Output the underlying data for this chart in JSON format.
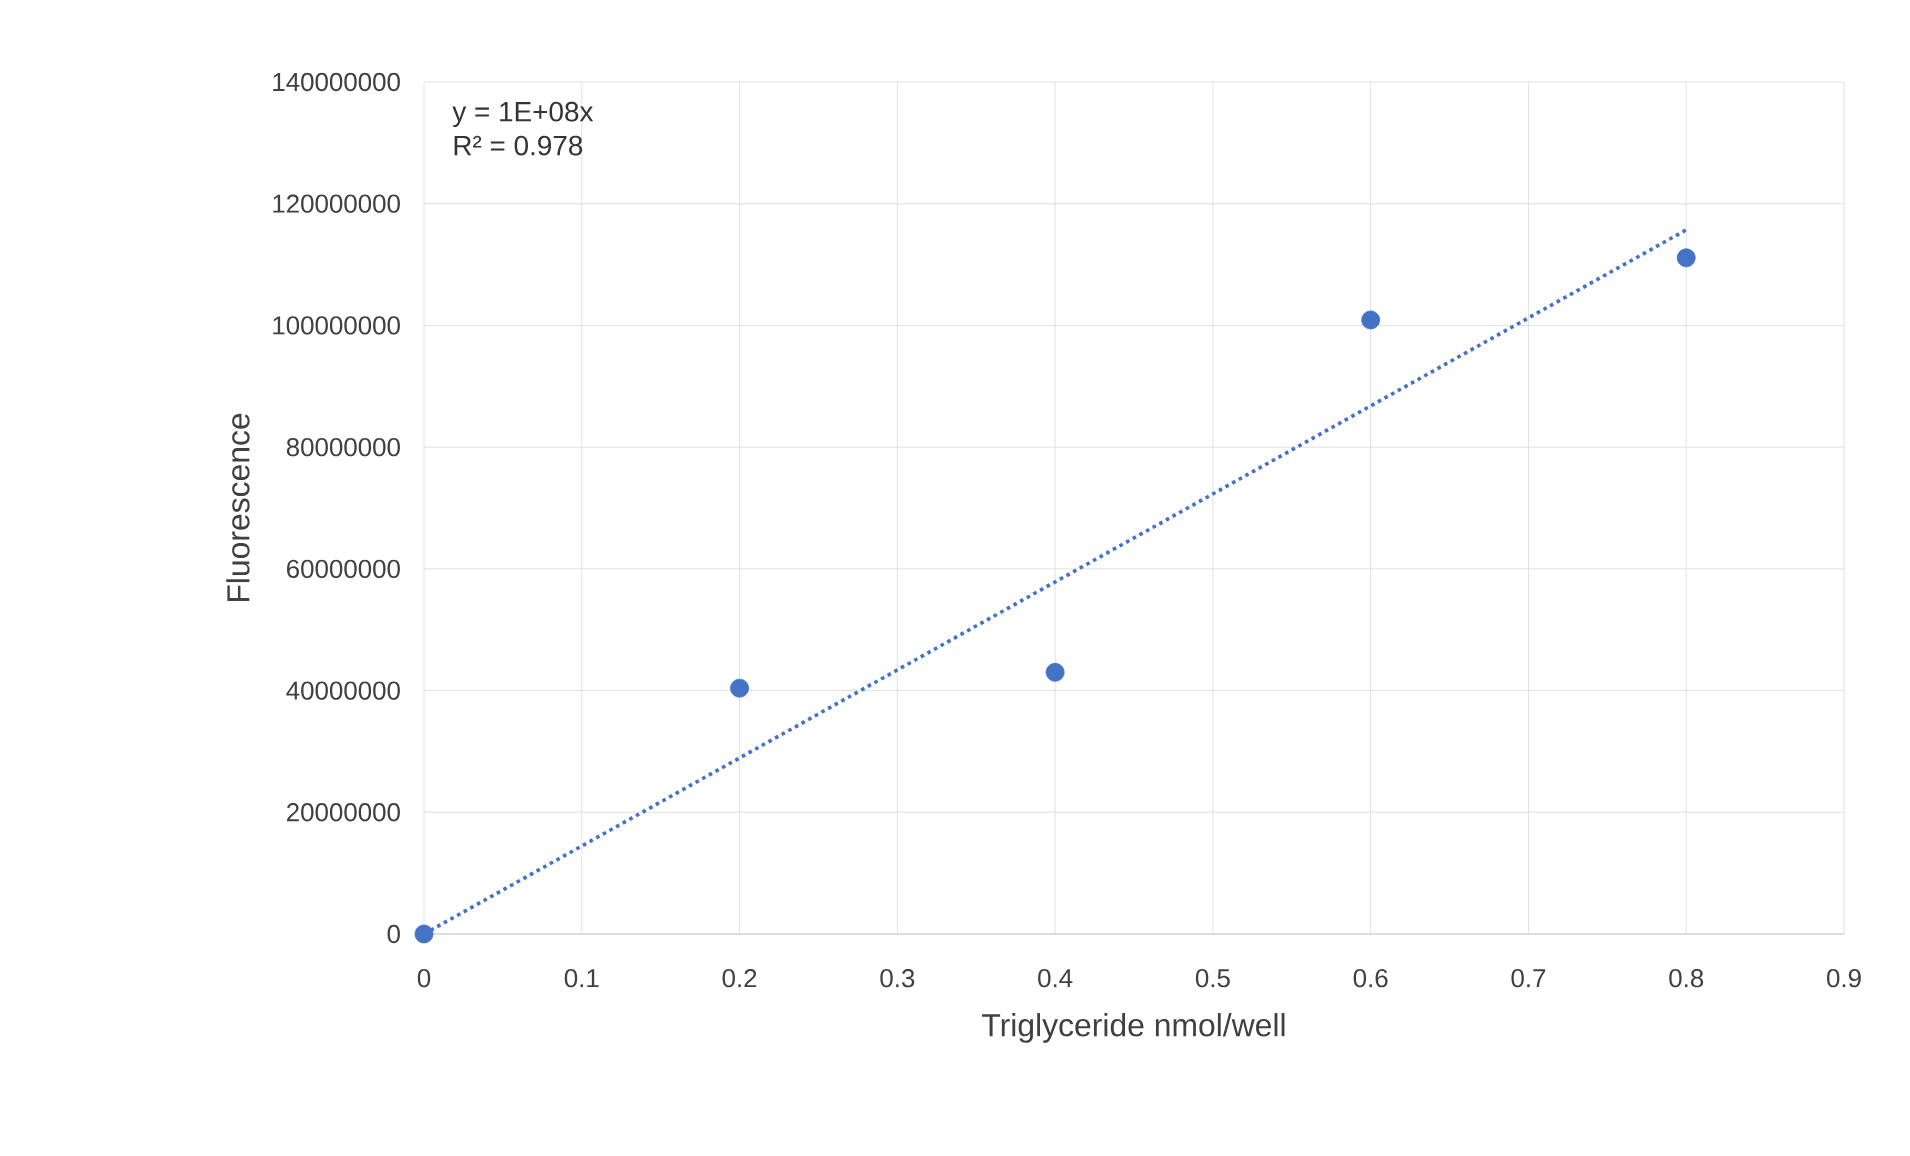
{
  "chart_data": {
    "type": "scatter",
    "xlabel": "Triglyceride nmol/well",
    "ylabel": "Fluorescence",
    "annotations": [
      "y = 1E+08x",
      "R² = 0.978"
    ],
    "xlim": [
      0,
      0.9
    ],
    "xticks": [
      0,
      0.1,
      0.2,
      0.3,
      0.4,
      0.5,
      0.6,
      0.7,
      0.8,
      0.9
    ],
    "ylim": [
      0,
      140000000
    ],
    "yticks": [
      0,
      20000000,
      40000000,
      60000000,
      80000000,
      100000000,
      120000000,
      140000000
    ],
    "grid": true,
    "x": [
      0,
      0.2,
      0.4,
      0.6,
      0.8
    ],
    "series": [
      {
        "marker": "circle",
        "color": "#4472c4",
        "values": [
          0,
          40400000,
          43000000,
          100900000,
          111100000
        ]
      },
      {
        "type": "line",
        "color": "#4472c4",
        "line_style": "dotted",
        "x": [
          0,
          0.8
        ],
        "values": [
          0,
          115700000
        ]
      }
    ]
  }
}
